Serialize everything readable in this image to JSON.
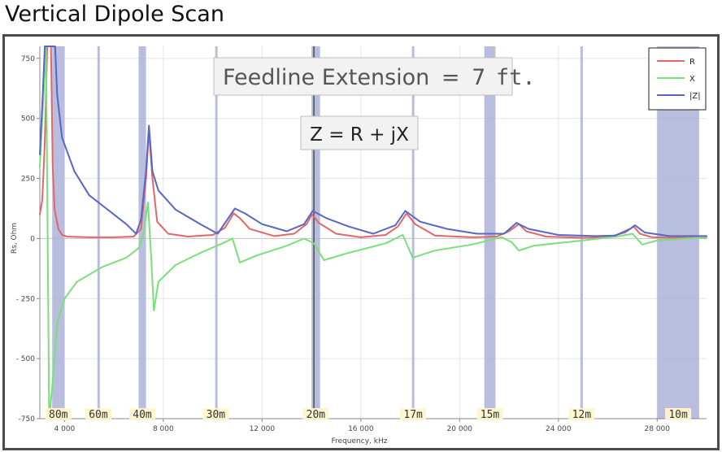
{
  "page_title": "Vertical Dipole Scan",
  "chart_data": {
    "type": "line",
    "xlabel": "Frequency, kHz",
    "ylabel": "Rs, Ohm",
    "xlim": [
      3000,
      30000
    ],
    "ylim": [
      -750,
      800
    ],
    "x_ticks": [
      4000,
      8000,
      12000,
      16000,
      20000,
      24000,
      28000
    ],
    "x_tick_labels": [
      "4 000",
      "8 000",
      "12 000",
      "16 000",
      "20 000",
      "24 000",
      "28 000"
    ],
    "y_ticks": [
      -750,
      -500,
      -250,
      0,
      250,
      500,
      750
    ],
    "y_tick_labels": [
      "-750",
      "- 500",
      "- 250",
      "0",
      "250",
      "500",
      "750"
    ],
    "grid": true,
    "legend_position": "top-right",
    "annotations": {
      "feedline": {
        "label": "Feedline Extension",
        "eq": "=",
        "value": "7",
        "unit": "ft."
      },
      "formula": "Z = R + jX"
    },
    "bands": [
      {
        "label": "80m",
        "start": 3500,
        "end": 4000
      },
      {
        "label": "60m",
        "start": 5330,
        "end": 5410
      },
      {
        "label": "40m",
        "start": 7000,
        "end": 7300
      },
      {
        "label": "30m",
        "start": 10100,
        "end": 10150
      },
      {
        "label": "20m",
        "start": 14000,
        "end": 14350
      },
      {
        "label": "17m",
        "start": 18068,
        "end": 18168
      },
      {
        "label": "15m",
        "start": 21000,
        "end": 21450
      },
      {
        "label": "12m",
        "start": 24890,
        "end": 24990
      },
      {
        "label": "10m",
        "start": 28000,
        "end": 29700
      }
    ],
    "series": [
      {
        "name": "R",
        "color": "#e06868",
        "points": [
          [
            3000,
            100
          ],
          [
            3100,
            160
          ],
          [
            3200,
            400
          ],
          [
            3300,
            800
          ],
          [
            3450,
            800
          ],
          [
            3520,
            300
          ],
          [
            3600,
            120
          ],
          [
            3750,
            40
          ],
          [
            3900,
            15
          ],
          [
            4100,
            8
          ],
          [
            5000,
            5
          ],
          [
            6000,
            5
          ],
          [
            6800,
            8
          ],
          [
            7100,
            40
          ],
          [
            7300,
            250
          ],
          [
            7420,
            450
          ],
          [
            7550,
            260
          ],
          [
            7750,
            70
          ],
          [
            8200,
            20
          ],
          [
            9000,
            8
          ],
          [
            10000,
            15
          ],
          [
            10500,
            45
          ],
          [
            10850,
            105
          ],
          [
            11100,
            85
          ],
          [
            11500,
            40
          ],
          [
            12500,
            10
          ],
          [
            13300,
            20
          ],
          [
            13800,
            60
          ],
          [
            14020,
            100
          ],
          [
            14300,
            65
          ],
          [
            15000,
            20
          ],
          [
            16000,
            5
          ],
          [
            17000,
            15
          ],
          [
            17500,
            50
          ],
          [
            17850,
            105
          ],
          [
            18200,
            60
          ],
          [
            19000,
            12
          ],
          [
            20500,
            5
          ],
          [
            21500,
            8
          ],
          [
            22000,
            30
          ],
          [
            22400,
            60
          ],
          [
            22700,
            30
          ],
          [
            23500,
            8
          ],
          [
            25000,
            3
          ],
          [
            26000,
            5
          ],
          [
            26700,
            25
          ],
          [
            27050,
            50
          ],
          [
            27300,
            20
          ],
          [
            27800,
            5
          ],
          [
            29000,
            3
          ],
          [
            30000,
            3
          ]
        ]
      },
      {
        "name": "X",
        "color": "#79e079",
        "points": [
          [
            3000,
            300
          ],
          [
            3150,
            600
          ],
          [
            3250,
            800
          ],
          [
            3380,
            -750
          ],
          [
            3500,
            -620
          ],
          [
            3700,
            -350
          ],
          [
            4000,
            -250
          ],
          [
            4500,
            -180
          ],
          [
            5500,
            -120
          ],
          [
            6500,
            -80
          ],
          [
            7000,
            -40
          ],
          [
            7200,
            20
          ],
          [
            7380,
            150
          ],
          [
            7520,
            -100
          ],
          [
            7620,
            -300
          ],
          [
            7800,
            -180
          ],
          [
            8500,
            -110
          ],
          [
            9500,
            -60
          ],
          [
            10400,
            -20
          ],
          [
            10800,
            0
          ],
          [
            11100,
            -100
          ],
          [
            11800,
            -70
          ],
          [
            13000,
            -30
          ],
          [
            13700,
            0
          ],
          [
            14100,
            -20
          ],
          [
            14500,
            -90
          ],
          [
            15500,
            -60
          ],
          [
            17000,
            -20
          ],
          [
            17700,
            15
          ],
          [
            18100,
            -80
          ],
          [
            19000,
            -50
          ],
          [
            20500,
            -25
          ],
          [
            21700,
            5
          ],
          [
            22100,
            -15
          ],
          [
            22400,
            -50
          ],
          [
            23000,
            -30
          ],
          [
            25000,
            -8
          ],
          [
            26500,
            10
          ],
          [
            27000,
            20
          ],
          [
            27400,
            -25
          ],
          [
            28000,
            -8
          ],
          [
            30000,
            5
          ]
        ]
      },
      {
        "name": "|Z|",
        "color": "#5a66c6",
        "points": [
          [
            3000,
            350
          ],
          [
            3120,
            600
          ],
          [
            3200,
            800
          ],
          [
            3620,
            800
          ],
          [
            3700,
            600
          ],
          [
            3900,
            420
          ],
          [
            4400,
            280
          ],
          [
            5000,
            180
          ],
          [
            6000,
            100
          ],
          [
            6500,
            60
          ],
          [
            6900,
            20
          ],
          [
            7100,
            80
          ],
          [
            7300,
            280
          ],
          [
            7420,
            470
          ],
          [
            7560,
            280
          ],
          [
            7800,
            200
          ],
          [
            8500,
            120
          ],
          [
            9500,
            60
          ],
          [
            10200,
            20
          ],
          [
            10900,
            125
          ],
          [
            11300,
            105
          ],
          [
            12000,
            60
          ],
          [
            13000,
            30
          ],
          [
            13700,
            60
          ],
          [
            14050,
            115
          ],
          [
            14600,
            85
          ],
          [
            15500,
            50
          ],
          [
            16500,
            20
          ],
          [
            17400,
            55
          ],
          [
            17800,
            115
          ],
          [
            18400,
            70
          ],
          [
            19500,
            40
          ],
          [
            20700,
            20
          ],
          [
            21800,
            20
          ],
          [
            22300,
            65
          ],
          [
            22800,
            40
          ],
          [
            24000,
            15
          ],
          [
            25500,
            10
          ],
          [
            26300,
            12
          ],
          [
            26900,
            40
          ],
          [
            27100,
            55
          ],
          [
            27500,
            25
          ],
          [
            28500,
            10
          ],
          [
            30000,
            10
          ]
        ]
      }
    ]
  }
}
